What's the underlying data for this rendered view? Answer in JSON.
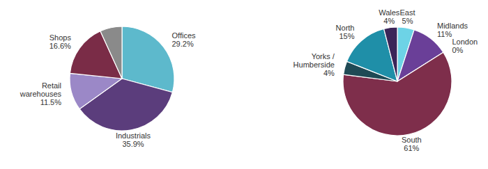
{
  "chart_data": [
    {
      "type": "pie",
      "categories": [
        "Offices",
        "Industrials",
        "Retail warehouses",
        "Shops",
        null
      ],
      "values": [
        29.2,
        35.9,
        11.5,
        16.6,
        6.8
      ],
      "value_labels": [
        "29.2%",
        "35.9%",
        "11.5%",
        "16.6%",
        null
      ],
      "colors": [
        "#5db9cc",
        "#5b3d7c",
        "#9b88c7",
        "#7a2c47",
        "#8a8a8a"
      ],
      "data_labels": true
    },
    {
      "type": "pie",
      "categories": [
        "East",
        "Midlands",
        "London",
        "South",
        "Yorks / Humberside",
        "North",
        "Wales"
      ],
      "values": [
        5,
        11,
        0,
        61,
        4,
        15,
        4
      ],
      "value_labels": [
        "5%",
        "11%",
        "0%",
        "61%",
        "4%",
        "15%",
        "4%"
      ],
      "colors": [
        "#6dd3e6",
        "#6a3f98",
        "#ffffff",
        "#7e2e4b",
        "#1f4a55",
        "#1f8fa8",
        "#3b2558"
      ],
      "data_labels": true
    }
  ]
}
